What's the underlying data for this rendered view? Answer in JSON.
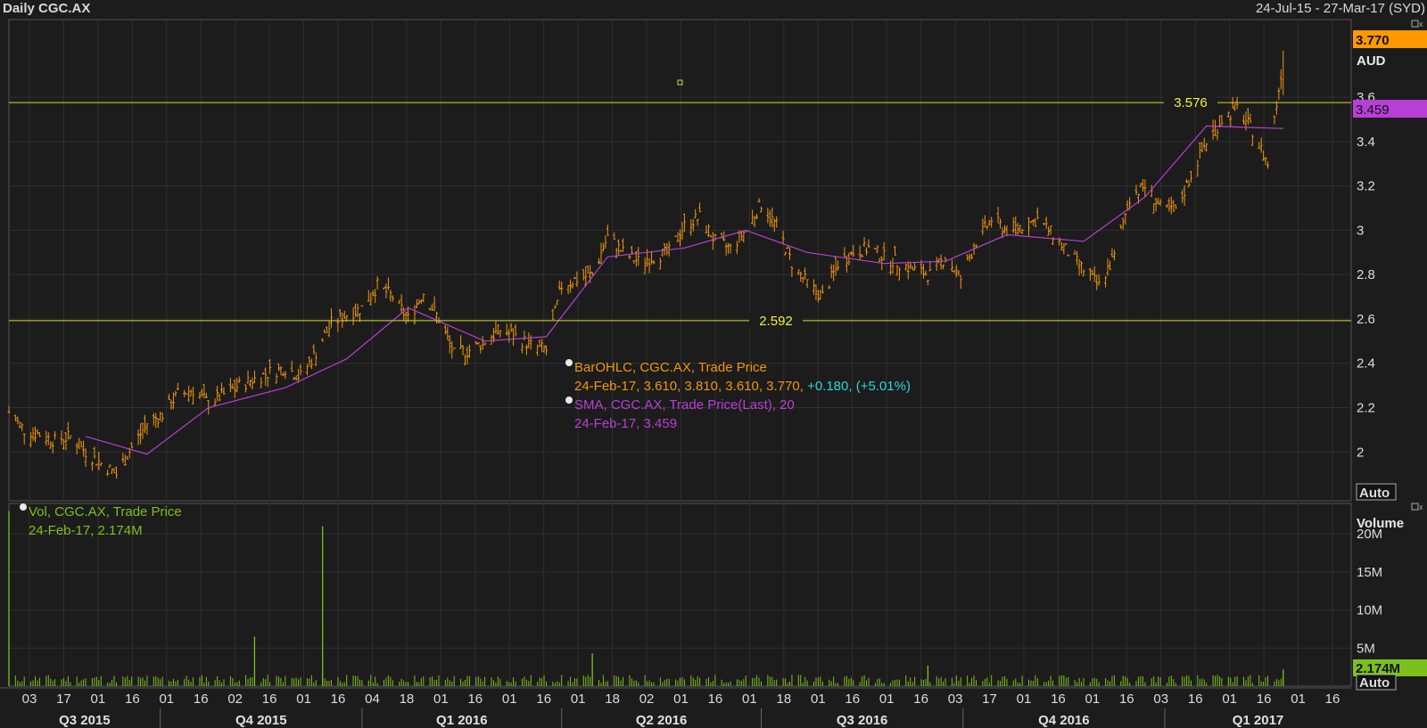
{
  "header": {
    "title": "Daily CGC.AX",
    "date_range": "24-Jul-15 - 27-Mar-17 (SYD)"
  },
  "colors": {
    "background": "#1c1c1c",
    "grid": "#2f2f2f",
    "price_bars": "#f0960f",
    "sma_line": "#b83fd6",
    "hline": "#d7d72a",
    "volume": "#7cc11b",
    "tick_text": "#dcdcdc",
    "last_badge": "#ff9900",
    "sma_badge": "#b83fd6",
    "vol_badge": "#7cc11b"
  },
  "price_legend": {
    "series1_title": "BarOHLC, CGC.AX, Trade Price",
    "series1_date": "24-Feb-17",
    "series1_ohlc": "3.610, 3.810, 3.610, 3.770,",
    "series1_change": "+0.180, (+5.01%)",
    "series2_title": "SMA, CGC.AX, Trade Price(Last),  20",
    "series2_values": "24-Feb-17, 3.459"
  },
  "volume_legend": {
    "title": "Vol, CGC.AX, Trade Price",
    "values": "24-Feb-17, 2.174M"
  },
  "chart_data": [
    {
      "type": "bar",
      "subtype": "ohlc",
      "title": "Daily CGC.AX",
      "ylabel": "AUD",
      "ylim": [
        1.78,
        3.95
      ],
      "y_ticks": [
        "2",
        "2.2",
        "2.4",
        "2.6",
        "2.8",
        "3",
        "3.2",
        "3.4",
        "3.6"
      ],
      "scale_button": "Auto",
      "x_range": [
        "2015-07-24",
        "2017-03-27"
      ],
      "x_tick_labels": [
        "03",
        "17",
        "01",
        "16",
        "01",
        "16",
        "02",
        "16",
        "01",
        "16",
        "04",
        "18",
        "01",
        "16",
        "01",
        "16",
        "01",
        "18",
        "02",
        "01",
        "16",
        "01",
        "18",
        "01",
        "16",
        "01",
        "16",
        "03",
        "17",
        "01",
        "16",
        "01",
        "16",
        "03",
        "16",
        "01",
        "16",
        "01",
        "16"
      ],
      "quarter_labels": [
        "Q3 2015",
        "Q4 2015",
        "Q1 2016",
        "Q2 2016",
        "Q3 2016",
        "Q4 2016",
        "Q1 2017"
      ],
      "series": [
        {
          "name": "BarOHLC, CGC.AX, Trade Price",
          "description": "approximate weekly closing prices read from chart",
          "dates": [
            "2015-07-24",
            "2015-07-31",
            "2015-08-07",
            "2015-08-14",
            "2015-08-21",
            "2015-08-28",
            "2015-09-04",
            "2015-09-11",
            "2015-09-18",
            "2015-09-25",
            "2015-10-02",
            "2015-10-09",
            "2015-10-16",
            "2015-10-23",
            "2015-10-30",
            "2015-11-06",
            "2015-11-13",
            "2015-11-20",
            "2015-11-27",
            "2015-12-04",
            "2015-12-11",
            "2015-12-18",
            "2015-12-25",
            "2016-01-01",
            "2016-01-08",
            "2016-01-15",
            "2016-01-22",
            "2016-01-29",
            "2016-02-05",
            "2016-02-12",
            "2016-02-19",
            "2016-02-26",
            "2016-03-04",
            "2016-03-11",
            "2016-03-18",
            "2016-03-25",
            "2016-04-01",
            "2016-04-08",
            "2016-04-15",
            "2016-04-22",
            "2016-04-29",
            "2016-05-06",
            "2016-05-13",
            "2016-05-20",
            "2016-05-27",
            "2016-06-03",
            "2016-06-10",
            "2016-06-17",
            "2016-06-24",
            "2016-07-01",
            "2016-07-08",
            "2016-07-15",
            "2016-07-22",
            "2016-07-29",
            "2016-08-05",
            "2016-08-12",
            "2016-08-19",
            "2016-08-26",
            "2016-09-02",
            "2016-09-09",
            "2016-09-16",
            "2016-09-23",
            "2016-09-30",
            "2016-10-07",
            "2016-10-14",
            "2016-10-21",
            "2016-10-28",
            "2016-11-04",
            "2016-11-11",
            "2016-11-18",
            "2016-11-25",
            "2016-12-02",
            "2016-12-09",
            "2016-12-16",
            "2016-12-23",
            "2016-12-30",
            "2017-01-06",
            "2017-01-13",
            "2017-01-20",
            "2017-01-27",
            "2017-02-03",
            "2017-02-10",
            "2017-02-17",
            "2017-02-24"
          ],
          "close": [
            2.18,
            2.1,
            2.08,
            2.05,
            2.07,
            2.0,
            1.95,
            1.9,
            2.02,
            2.13,
            2.17,
            2.26,
            2.28,
            2.22,
            2.26,
            2.3,
            2.33,
            2.36,
            2.38,
            2.34,
            2.45,
            2.58,
            2.62,
            2.65,
            2.75,
            2.7,
            2.6,
            2.72,
            2.6,
            2.44,
            2.46,
            2.5,
            2.55,
            2.52,
            2.48,
            2.46,
            2.75,
            2.78,
            2.8,
            2.97,
            2.9,
            2.86,
            2.88,
            2.9,
            3.02,
            3.06,
            2.95,
            2.92,
            3.0,
            3.12,
            3.02,
            2.85,
            2.76,
            2.7,
            2.85,
            2.9,
            2.92,
            2.88,
            2.85,
            2.82,
            2.8,
            2.88,
            2.78,
            2.95,
            3.05,
            3.0,
            3.02,
            3.05,
            2.98,
            2.9,
            2.82,
            2.75,
            2.88,
            3.15,
            3.2,
            3.1,
            3.08,
            3.25,
            3.4,
            3.5,
            3.55,
            3.45,
            3.3,
            3.77
          ]
        },
        {
          "name": "SMA, CGC.AX, Trade Price(Last),  20",
          "dates": [
            "2015-07-24",
            "2015-08-28",
            "2015-09-25",
            "2015-10-23",
            "2015-11-27",
            "2015-12-25",
            "2016-01-22",
            "2016-02-26",
            "2016-03-25",
            "2016-04-22",
            "2016-05-27",
            "2016-06-24",
            "2016-07-22",
            "2016-08-26",
            "2016-09-23",
            "2016-10-21",
            "2016-11-25",
            "2016-12-23",
            "2017-01-20",
            "2017-02-24"
          ],
          "values": [
            null,
            2.07,
            1.99,
            2.2,
            2.29,
            2.42,
            2.65,
            2.5,
            2.52,
            2.88,
            2.92,
            3.0,
            2.9,
            2.85,
            2.86,
            2.98,
            2.95,
            3.15,
            3.47,
            3.459
          ]
        }
      ],
      "horizontal_lines": [
        {
          "label": "3.576",
          "value": 3.576
        },
        {
          "label": "2.592",
          "value": 2.592
        }
      ],
      "badges": [
        {
          "label": "3.770",
          "value": 3.77,
          "series": "last price"
        },
        {
          "label": "3.459",
          "value": 3.459,
          "series": "SMA"
        }
      ]
    },
    {
      "type": "bar",
      "title": "Volume",
      "ylabel": "Volume",
      "ylim": [
        0,
        24
      ],
      "unit": "M",
      "y_ticks": [
        "5M",
        "10M",
        "15M",
        "20M"
      ],
      "scale_button": "Auto",
      "series": [
        {
          "name": "Vol, CGC.AX, Trade Price",
          "description": "approximate daily volume (millions); most days small, notable spikes",
          "spikes": [
            {
              "date": "2015-07-24",
              "value": 23.0
            },
            {
              "date": "2015-11-13",
              "value": 6.5
            },
            {
              "date": "2015-12-14",
              "value": 21.0
            },
            {
              "date": "2016-04-15",
              "value": 4.3
            },
            {
              "date": "2016-09-15",
              "value": 2.7
            },
            {
              "date": "2017-02-24",
              "value": 2.174
            }
          ]
        }
      ],
      "badges": [
        {
          "label": "2.174M",
          "value": 2.174
        }
      ]
    }
  ]
}
